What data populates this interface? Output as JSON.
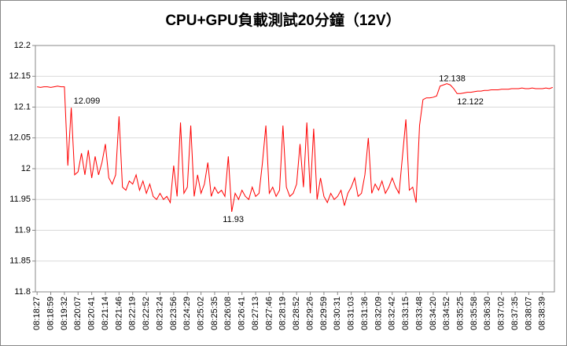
{
  "chart_data": {
    "type": "line",
    "title": "CPU+GPU負載測試20分鐘（12V）",
    "categories": [
      "08:18:27",
      null,
      null,
      null,
      "08:18:59",
      null,
      null,
      null,
      "08:19:32",
      null,
      null,
      null,
      "08:20:07",
      null,
      null,
      null,
      "08:20:41",
      null,
      null,
      null,
      "08:21:14",
      null,
      null,
      null,
      "08:21:46",
      null,
      null,
      null,
      "08:22:19",
      null,
      null,
      null,
      "08:22:52",
      null,
      null,
      null,
      "08:23:24",
      null,
      null,
      null,
      "08:23:56",
      null,
      null,
      null,
      "08:24:29",
      null,
      null,
      null,
      "08:25:02",
      null,
      null,
      null,
      "08:25:35",
      null,
      null,
      null,
      "08:26:08",
      null,
      null,
      null,
      "08:26:41",
      null,
      null,
      null,
      "08:27:13",
      null,
      null,
      null,
      "08:27:46",
      null,
      null,
      null,
      "08:28:19",
      null,
      null,
      null,
      "08:28:52",
      null,
      null,
      null,
      "08:29:26",
      null,
      null,
      null,
      "08:29:59",
      null,
      null,
      null,
      "08:30:31",
      null,
      null,
      null,
      "08:31:03",
      null,
      null,
      null,
      "08:31:36",
      null,
      null,
      null,
      "08:32:09",
      null,
      null,
      null,
      "08:32:42",
      null,
      null,
      null,
      "08:33:15",
      null,
      null,
      null,
      "08:33:48",
      null,
      null,
      null,
      "08:34:20",
      null,
      null,
      null,
      "08:34:52",
      null,
      null,
      null,
      "08:35:25",
      null,
      null,
      null,
      "08:35:58",
      null,
      null,
      null,
      "08:36:30",
      null,
      null,
      null,
      "08:37:02",
      null,
      null,
      null,
      "08:37:35",
      null,
      null,
      null,
      "08:38:07",
      null,
      null,
      null,
      "08:38:39",
      null,
      null,
      null
    ],
    "series": [
      {
        "color": "#ff0000",
        "values": [
          12.133,
          12.132,
          12.133,
          12.133,
          12.132,
          12.133,
          12.134,
          12.133,
          12.133,
          12.005,
          12.099,
          11.99,
          11.995,
          12.025,
          11.99,
          12.03,
          11.985,
          12.02,
          11.99,
          12.01,
          12.04,
          11.985,
          11.975,
          11.99,
          12.085,
          11.97,
          11.965,
          11.98,
          11.975,
          11.99,
          11.965,
          11.98,
          11.96,
          11.975,
          11.955,
          11.95,
          11.96,
          11.95,
          11.955,
          11.945,
          12.005,
          11.955,
          12.075,
          11.96,
          11.97,
          12.07,
          11.955,
          11.99,
          11.96,
          11.975,
          12.01,
          11.955,
          11.97,
          11.96,
          11.965,
          11.955,
          12.02,
          11.93,
          11.96,
          11.95,
          11.965,
          11.955,
          11.95,
          11.97,
          11.955,
          11.96,
          12.01,
          12.07,
          11.96,
          11.97,
          11.955,
          11.965,
          12.07,
          11.97,
          11.955,
          11.96,
          11.975,
          12.04,
          11.97,
          12.075,
          11.96,
          12.065,
          11.95,
          11.985,
          11.955,
          11.945,
          11.96,
          11.95,
          11.955,
          11.965,
          11.94,
          11.96,
          11.97,
          11.985,
          11.955,
          11.96,
          11.99,
          12.05,
          11.96,
          11.975,
          11.965,
          11.98,
          11.96,
          11.97,
          11.985,
          11.97,
          11.96,
          12.02,
          12.08,
          11.965,
          11.97,
          11.945,
          12.07,
          12.112,
          12.115,
          12.115,
          12.116,
          12.118,
          12.134,
          12.136,
          12.138,
          12.136,
          12.13,
          12.122,
          12.122,
          12.123,
          12.124,
          12.124,
          12.125,
          12.126,
          12.126,
          12.127,
          12.127,
          12.128,
          12.128,
          12.128,
          12.129,
          12.129,
          12.129,
          12.13,
          12.13,
          12.13,
          12.131,
          12.13,
          12.13,
          12.131,
          12.13,
          12.13,
          12.13,
          12.131,
          12.13,
          12.132
        ],
        "value_labels": [
          null,
          null,
          null,
          null,
          null,
          null,
          null,
          null,
          null,
          null,
          "12.099",
          null,
          null,
          null,
          null,
          null,
          null,
          null,
          null,
          null,
          null,
          null,
          null,
          null,
          null,
          null,
          null,
          null,
          null,
          null,
          null,
          null,
          null,
          null,
          null,
          null,
          null,
          null,
          null,
          null,
          null,
          null,
          null,
          null,
          null,
          null,
          null,
          null,
          null,
          null,
          null,
          null,
          null,
          null,
          null,
          null,
          null,
          "11.93",
          null,
          null,
          null,
          null,
          null,
          null,
          null,
          null,
          null,
          null,
          null,
          null,
          null,
          null,
          null,
          null,
          null,
          null,
          null,
          null,
          null,
          null,
          null,
          null,
          null,
          null,
          null,
          null,
          null,
          null,
          null,
          null,
          null,
          null,
          null,
          null,
          null,
          null,
          null,
          null,
          null,
          null,
          null,
          null,
          null,
          null,
          null,
          null,
          null,
          null,
          null,
          null,
          null,
          null,
          null,
          null,
          null,
          null,
          null,
          null,
          null,
          null,
          "12.138",
          null,
          null,
          "12.122",
          null,
          null,
          null,
          null,
          null,
          null,
          null,
          null,
          null,
          null,
          null,
          null,
          null,
          null,
          null,
          null,
          null,
          null,
          null,
          null,
          null,
          null,
          null,
          null,
          null,
          null,
          null,
          null
        ]
      }
    ],
    "ylim": [
      11.8,
      12.2
    ],
    "yticks": [
      11.8,
      11.85,
      11.9,
      11.95,
      12,
      12.05,
      12.1,
      12.15,
      12.2
    ],
    "grid": true
  }
}
